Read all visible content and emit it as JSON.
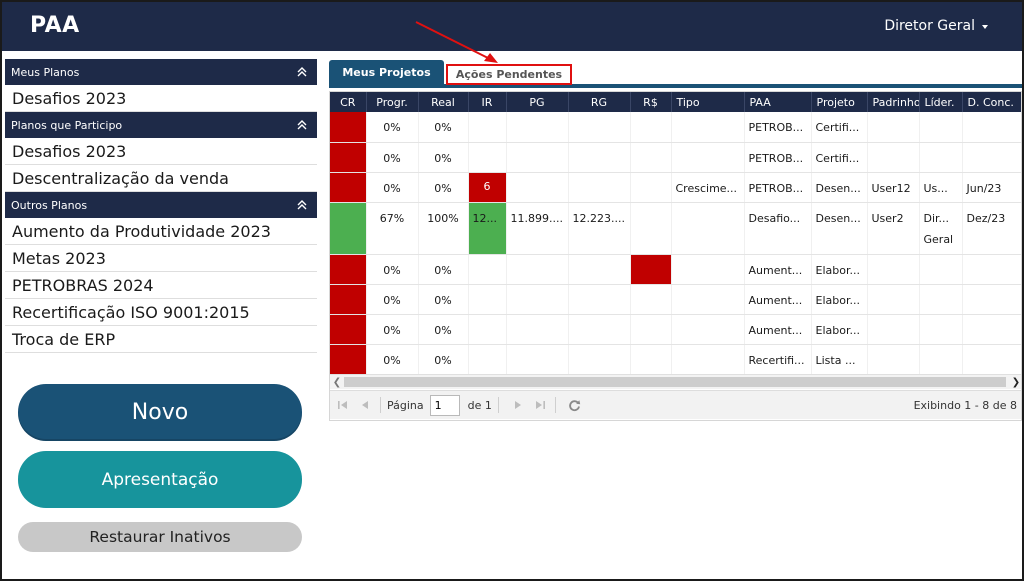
{
  "header": {
    "app_title": "PAA",
    "user_menu": "Diretor Geral"
  },
  "sidebar": {
    "sections": [
      {
        "title": "Meus Planos",
        "items": [
          "Desafios 2023"
        ]
      },
      {
        "title": "Planos que Participo",
        "items": [
          "Desafios 2023",
          "Descentralização da venda"
        ]
      },
      {
        "title": "Outros Planos",
        "items": [
          "Aumento da Produtividade 2023",
          "Metas 2023",
          "PETROBRAS 2024",
          "Recertificação ISO 9001:2015",
          "Troca de ERP"
        ]
      }
    ],
    "buttons": {
      "novo": "Novo",
      "apresentacao": "Apresentação",
      "restaurar": "Restaurar Inativos"
    }
  },
  "tabs": {
    "meus_projetos": "Meus Projetos",
    "acoes_pendentes": "Ações Pendentes"
  },
  "grid": {
    "columns": [
      "CR",
      "Progr.",
      "Real",
      "IR",
      "PG",
      "RG",
      "R$",
      "Tipo",
      "PAA",
      "Projeto",
      "Padrinho",
      "Líder.",
      "D. Conc."
    ],
    "rows": [
      {
        "progr": "0%",
        "real": "0%",
        "ir": "",
        "pg": "",
        "rg": "",
        "tipo": "",
        "paa": "PETROB...",
        "projeto": "Certifi...",
        "padrinho": "",
        "lider": "",
        "dconc": ""
      },
      {
        "progr": "0%",
        "real": "0%",
        "ir": "",
        "pg": "",
        "rg": "",
        "tipo": "",
        "paa": "PETROB...",
        "projeto": "Certifi...",
        "padrinho": "",
        "lider": "",
        "dconc": ""
      },
      {
        "progr": "0%",
        "real": "0%",
        "ir": "6",
        "pg": "",
        "rg": "",
        "tipo": "Crescime...",
        "paa": "PETROB...",
        "projeto": "Desen...",
        "padrinho": "User12",
        "lider": "Us...",
        "dconc": "Jun/23"
      },
      {
        "progr": "67%",
        "real": "100%",
        "ir": "12...",
        "pg": "11.899....",
        "rg": "12.223....",
        "tipo": "",
        "paa": "Desafio...",
        "projeto": "Desen...",
        "padrinho": "User2",
        "lider": "Dir... Geral",
        "dconc": "Dez/23"
      },
      {
        "progr": "0%",
        "real": "0%",
        "ir": "",
        "pg": "",
        "rg": "",
        "tipo": "",
        "paa": "Aument...",
        "projeto": "Elabor...",
        "padrinho": "",
        "lider": "",
        "dconc": ""
      },
      {
        "progr": "0%",
        "real": "0%",
        "ir": "",
        "pg": "",
        "rg": "",
        "tipo": "",
        "paa": "Aument...",
        "projeto": "Elabor...",
        "padrinho": "",
        "lider": "",
        "dconc": ""
      },
      {
        "progr": "0%",
        "real": "0%",
        "ir": "",
        "pg": "",
        "rg": "",
        "tipo": "",
        "paa": "Aument...",
        "projeto": "Elabor...",
        "padrinho": "",
        "lider": "",
        "dconc": ""
      },
      {
        "progr": "0%",
        "real": "0%",
        "ir": "",
        "pg": "",
        "rg": "",
        "tipo": "",
        "paa": "Recertifi...",
        "projeto": "Lista ...",
        "padrinho": "",
        "lider": "",
        "dconc": ""
      }
    ]
  },
  "pager": {
    "page_label": "Página",
    "page_value": "1",
    "of_label": "de 1",
    "info": "Exibindo 1 - 8 de 8"
  },
  "colors": {
    "navy": "#1e2a48",
    "blue": "#1a5276",
    "teal": "#17949c",
    "red": "#c00000",
    "green": "#4caf50",
    "annotation_red": "#e01010"
  },
  "icons": {
    "collapse": "double-chevron-up-icon",
    "pager_first": "first-page-icon",
    "pager_prev": "prev-page-icon",
    "pager_next": "next-page-icon",
    "pager_last": "last-page-icon",
    "refresh": "refresh-icon"
  }
}
